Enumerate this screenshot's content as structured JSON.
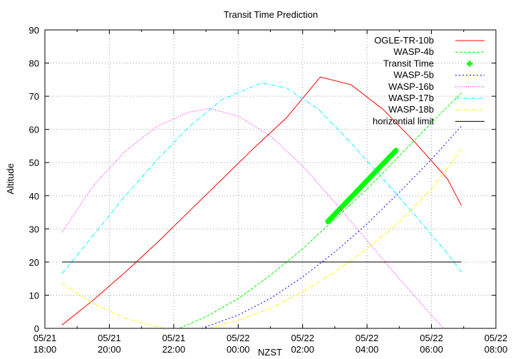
{
  "chart_data": {
    "type": "line",
    "title": "Transit Time Prediction",
    "xlabel": "NZST",
    "ylabel": "Altitude",
    "ylim": [
      0,
      90
    ],
    "yticks": [
      0,
      10,
      20,
      30,
      40,
      50,
      60,
      70,
      80,
      90
    ],
    "xlim_hours": [
      0,
      14
    ],
    "xticks": [
      {
        "h": 0,
        "date": "05/21",
        "time": "18:00"
      },
      {
        "h": 2,
        "date": "05/21",
        "time": "20:00"
      },
      {
        "h": 4,
        "date": "05/21",
        "time": "22:00"
      },
      {
        "h": 6,
        "date": "05/22",
        "time": "00:00"
      },
      {
        "h": 8,
        "date": "05/22",
        "time": "02:00"
      },
      {
        "h": 10,
        "date": "05/22",
        "time": "04:00"
      },
      {
        "h": 12,
        "date": "05/22",
        "time": "06:00"
      },
      {
        "h": 14,
        "date": "05/22",
        "time": "08:00"
      }
    ],
    "grid": true,
    "legend_position": "top-right",
    "x_unit": "hours after 05/21 18:00",
    "series": [
      {
        "name": "OGLE-TR-10b",
        "color": "#ff0000",
        "dash": "",
        "x": [
          0.53,
          1.5,
          2.5,
          3.5,
          4.5,
          5.5,
          6.5,
          7.5,
          8.55,
          9.5,
          10.5,
          11.5,
          12.5,
          12.93
        ],
        "y": [
          1,
          8.5,
          17,
          26,
          35.5,
          45,
          54.5,
          63.5,
          75.8,
          73.5,
          66,
          56,
          45,
          37
        ]
      },
      {
        "name": "WASP-4b",
        "color": "#00ff00",
        "dash": "4,2",
        "x": [
          4.18,
          5,
          6,
          7,
          8,
          9,
          10,
          11,
          12,
          12.93
        ],
        "y": [
          0,
          3.5,
          9,
          16,
          24,
          33,
          42,
          52,
          62,
          71
        ]
      },
      {
        "name": "Transit Time",
        "color": "#00ff00",
        "dash": "",
        "x": [
          8.78,
          10.9
        ],
        "y": [
          32.2,
          53.7
        ]
      },
      {
        "name": "WASP-5b",
        "color": "#0000ff",
        "dash": "2,3",
        "x": [
          4.87,
          6,
          7,
          8,
          9,
          10,
          11,
          12,
          12.93
        ],
        "y": [
          0,
          4,
          9,
          15.5,
          23,
          31.5,
          41,
          51,
          61
        ]
      },
      {
        "name": "WASP-16b",
        "color": "#ff00ff",
        "dash": "1,2",
        "x": [
          0.53,
          1.5,
          2.5,
          3.5,
          4.5,
          5.13,
          6,
          7,
          8,
          9,
          10,
          11,
          12,
          12.38
        ],
        "y": [
          29,
          43,
          53.5,
          61,
          65.3,
          66.3,
          64,
          58,
          49,
          38,
          26.5,
          15,
          4,
          0
        ]
      },
      {
        "name": "WASP-17b",
        "color": "#00ffff",
        "dash": "6,2,1,2",
        "x": [
          0.53,
          1.5,
          2.5,
          3.5,
          4.5,
          5.5,
          6.72,
          7.5,
          8.5,
          9.5,
          10.5,
          11.5,
          12.5,
          12.93
        ],
        "y": [
          16.5,
          28,
          40,
          51,
          61,
          69,
          74,
          72.5,
          66,
          56,
          45,
          34,
          22.5,
          17
        ]
      },
      {
        "name": "WASP-18b",
        "color": "#ffff00",
        "dash": "6,2,1,2",
        "x": [
          0.53,
          1.5,
          2.5,
          3.5,
          3.73,
          5.07,
          6,
          7,
          8,
          9,
          10,
          11,
          12,
          12.93
        ],
        "y": [
          13.5,
          7.5,
          3,
          0.5,
          0,
          0,
          2.5,
          6,
          11,
          17,
          24,
          32,
          42,
          54
        ]
      },
      {
        "name": "horizontial limit",
        "color": "#000000",
        "dash": "",
        "x": [
          0.53,
          12.93
        ],
        "y": [
          20,
          20
        ]
      }
    ]
  },
  "legend": {
    "items": [
      "OGLE-TR-10b",
      "WASP-4b",
      "Transit Time",
      "WASP-5b",
      "WASP-16b",
      "WASP-17b",
      "WASP-18b",
      "horizontial limit"
    ]
  }
}
